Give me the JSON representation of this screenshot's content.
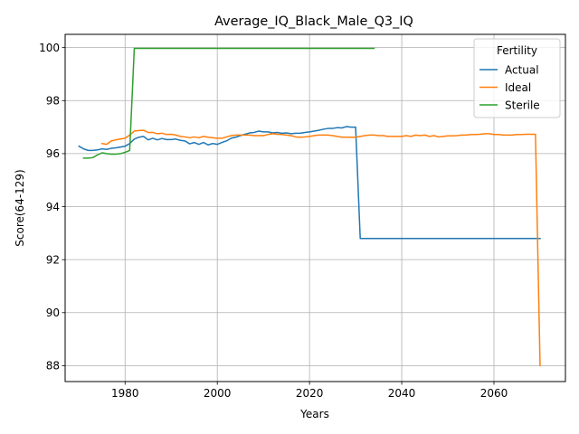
{
  "chart_data": {
    "type": "line",
    "title": "Average_IQ_Black_Male_Q3_IQ",
    "xlabel": "Years",
    "ylabel": "Score(64-129)",
    "xlim": [
      1967.0,
      2075.5
    ],
    "ylim": [
      87.4,
      100.5
    ],
    "xticks": [
      1980,
      2000,
      2020,
      2040,
      2060
    ],
    "yticks": [
      88,
      90,
      92,
      94,
      96,
      98,
      100
    ],
    "grid": true,
    "legend": {
      "title": "Fertility",
      "placement": "top-right"
    },
    "series": [
      {
        "name": "Actual",
        "color": "#1f77b4",
        "points": [
          [
            1970,
            96.28
          ],
          [
            1971,
            96.18
          ],
          [
            1972,
            96.12
          ],
          [
            1973,
            96.12
          ],
          [
            1974,
            96.14
          ],
          [
            1975,
            96.18
          ],
          [
            1976,
            96.16
          ],
          [
            1977,
            96.2
          ],
          [
            1978,
            96.22
          ],
          [
            1979,
            96.25
          ],
          [
            1980,
            96.28
          ],
          [
            1981,
            96.38
          ],
          [
            1982,
            96.55
          ],
          [
            1983,
            96.62
          ],
          [
            1984,
            96.65
          ],
          [
            1985,
            96.52
          ],
          [
            1986,
            96.58
          ],
          [
            1987,
            96.52
          ],
          [
            1988,
            96.57
          ],
          [
            1989,
            96.53
          ],
          [
            1990,
            96.53
          ],
          [
            1991,
            96.55
          ],
          [
            1992,
            96.5
          ],
          [
            1993,
            96.48
          ],
          [
            1994,
            96.37
          ],
          [
            1995,
            96.42
          ],
          [
            1996,
            96.35
          ],
          [
            1997,
            96.42
          ],
          [
            1998,
            96.33
          ],
          [
            1999,
            96.38
          ],
          [
            2000,
            96.35
          ],
          [
            2001,
            96.42
          ],
          [
            2002,
            96.48
          ],
          [
            2003,
            96.58
          ],
          [
            2004,
            96.62
          ],
          [
            2005,
            96.68
          ],
          [
            2006,
            96.73
          ],
          [
            2007,
            96.78
          ],
          [
            2008,
            96.8
          ],
          [
            2009,
            96.85
          ],
          [
            2010,
            96.82
          ],
          [
            2011,
            96.82
          ],
          [
            2012,
            96.78
          ],
          [
            2013,
            96.8
          ],
          [
            2014,
            96.77
          ],
          [
            2015,
            96.78
          ],
          [
            2016,
            96.75
          ],
          [
            2017,
            96.77
          ],
          [
            2018,
            96.77
          ],
          [
            2019,
            96.8
          ],
          [
            2020,
            96.82
          ],
          [
            2021,
            96.85
          ],
          [
            2022,
            96.88
          ],
          [
            2023,
            96.92
          ],
          [
            2024,
            96.95
          ],
          [
            2025,
            96.95
          ],
          [
            2026,
            96.98
          ],
          [
            2027,
            96.97
          ],
          [
            2028,
            97.02
          ],
          [
            2029,
            97.0
          ],
          [
            2030,
            97.0
          ],
          [
            2031,
            92.8
          ],
          [
            2040,
            92.8
          ],
          [
            2050,
            92.8
          ],
          [
            2060,
            92.8
          ],
          [
            2070,
            92.8
          ]
        ]
      },
      {
        "name": "Ideal",
        "color": "#ff7f0e",
        "points": [
          [
            1975,
            96.38
          ],
          [
            1976,
            96.35
          ],
          [
            1977,
            96.48
          ],
          [
            1978,
            96.52
          ],
          [
            1979,
            96.55
          ],
          [
            1980,
            96.58
          ],
          [
            1981,
            96.7
          ],
          [
            1982,
            96.85
          ],
          [
            1983,
            96.87
          ],
          [
            1984,
            96.88
          ],
          [
            1985,
            96.8
          ],
          [
            1986,
            96.8
          ],
          [
            1987,
            96.75
          ],
          [
            1988,
            96.77
          ],
          [
            1989,
            96.72
          ],
          [
            1990,
            96.73
          ],
          [
            1991,
            96.7
          ],
          [
            1992,
            96.65
          ],
          [
            1993,
            96.63
          ],
          [
            1994,
            96.6
          ],
          [
            1995,
            96.63
          ],
          [
            1996,
            96.6
          ],
          [
            1997,
            96.65
          ],
          [
            1998,
            96.62
          ],
          [
            1999,
            96.6
          ],
          [
            2000,
            96.58
          ],
          [
            2001,
            96.58
          ],
          [
            2002,
            96.63
          ],
          [
            2003,
            96.68
          ],
          [
            2004,
            96.7
          ],
          [
            2005,
            96.7
          ],
          [
            2006,
            96.7
          ],
          [
            2007,
            96.7
          ],
          [
            2008,
            96.68
          ],
          [
            2009,
            96.68
          ],
          [
            2010,
            96.68
          ],
          [
            2011,
            96.72
          ],
          [
            2012,
            96.75
          ],
          [
            2013,
            96.73
          ],
          [
            2014,
            96.72
          ],
          [
            2015,
            96.7
          ],
          [
            2016,
            96.68
          ],
          [
            2017,
            96.63
          ],
          [
            2018,
            96.62
          ],
          [
            2019,
            96.63
          ],
          [
            2020,
            96.65
          ],
          [
            2021,
            96.68
          ],
          [
            2022,
            96.7
          ],
          [
            2023,
            96.7
          ],
          [
            2024,
            96.7
          ],
          [
            2025,
            96.68
          ],
          [
            2026,
            96.65
          ],
          [
            2027,
            96.62
          ],
          [
            2028,
            96.62
          ],
          [
            2029,
            96.62
          ],
          [
            2030,
            96.62
          ],
          [
            2031,
            96.65
          ],
          [
            2032,
            96.68
          ],
          [
            2033,
            96.7
          ],
          [
            2034,
            96.7
          ],
          [
            2035,
            96.68
          ],
          [
            2036,
            96.68
          ],
          [
            2037,
            96.65
          ],
          [
            2038,
            96.65
          ],
          [
            2039,
            96.65
          ],
          [
            2040,
            96.65
          ],
          [
            2041,
            96.68
          ],
          [
            2042,
            96.65
          ],
          [
            2043,
            96.7
          ],
          [
            2044,
            96.68
          ],
          [
            2045,
            96.7
          ],
          [
            2046,
            96.65
          ],
          [
            2047,
            96.68
          ],
          [
            2048,
            96.63
          ],
          [
            2049,
            96.65
          ],
          [
            2050,
            96.67
          ],
          [
            2051,
            96.67
          ],
          [
            2052,
            96.68
          ],
          [
            2053,
            96.7
          ],
          [
            2054,
            96.7
          ],
          [
            2055,
            96.72
          ],
          [
            2056,
            96.72
          ],
          [
            2057,
            96.73
          ],
          [
            2058,
            96.75
          ],
          [
            2059,
            96.75
          ],
          [
            2060,
            96.72
          ],
          [
            2061,
            96.72
          ],
          [
            2062,
            96.7
          ],
          [
            2063,
            96.7
          ],
          [
            2064,
            96.7
          ],
          [
            2065,
            96.72
          ],
          [
            2066,
            96.72
          ],
          [
            2067,
            96.73
          ],
          [
            2068,
            96.73
          ],
          [
            2069,
            96.73
          ],
          [
            2070,
            88.0
          ]
        ]
      },
      {
        "name": "Sterile",
        "color": "#2ca02c",
        "points": [
          [
            1971,
            95.83
          ],
          [
            1972,
            95.83
          ],
          [
            1973,
            95.85
          ],
          [
            1974,
            95.95
          ],
          [
            1975,
            96.03
          ],
          [
            1976,
            96.0
          ],
          [
            1977,
            95.98
          ],
          [
            1978,
            95.98
          ],
          [
            1979,
            96.0
          ],
          [
            1980,
            96.05
          ],
          [
            1981,
            96.12
          ],
          [
            1982,
            99.97
          ],
          [
            1990,
            99.97
          ],
          [
            2000,
            99.97
          ],
          [
            2010,
            99.97
          ],
          [
            2020,
            99.97
          ],
          [
            2030,
            99.97
          ],
          [
            2034,
            99.97
          ]
        ]
      }
    ]
  }
}
